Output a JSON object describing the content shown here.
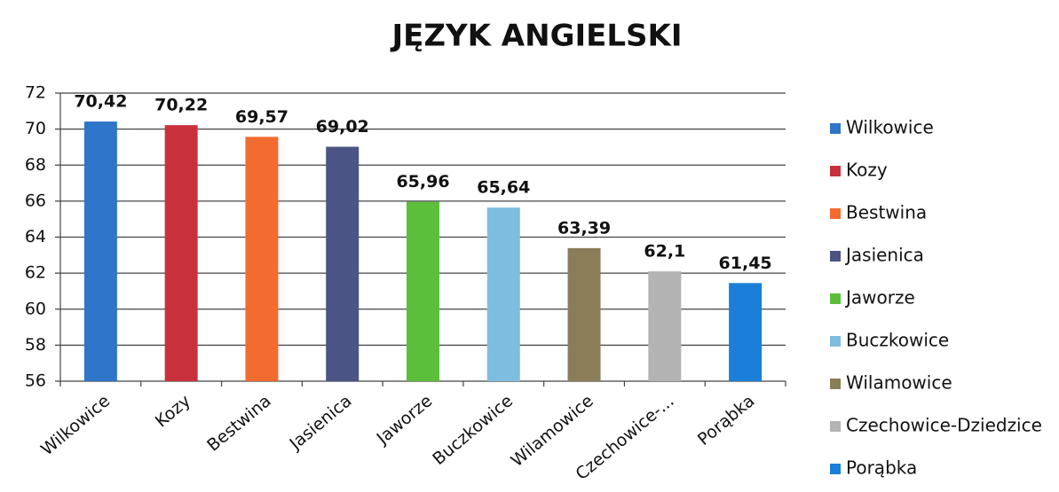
{
  "chart_data": {
    "type": "bar",
    "title": "JĘZYK ANGIELSKI",
    "categories": [
      "Wilkowice",
      "Kozy",
      "Bestwina",
      "Jasienica",
      "Jaworze",
      "Buczkowice",
      "Wilamowice",
      "Czechowice-...",
      "Porąbka"
    ],
    "values": [
      70.42,
      70.22,
      69.57,
      69.02,
      65.96,
      65.64,
      63.39,
      62.1,
      61.45
    ],
    "value_labels": [
      "70,42",
      "70,22",
      "69,57",
      "69,02",
      "65,96",
      "65,64",
      "63,39",
      "62,1",
      "61,45"
    ],
    "colors": [
      "#2f75c9",
      "#c8313b",
      "#f26b2f",
      "#4a5585",
      "#5cbf3c",
      "#7fbde0",
      "#8a7d58",
      "#b3b3b3",
      "#1a7fd9"
    ],
    "legend": [
      "Wilkowice",
      "Kozy",
      "Bestwina",
      "Jasienica",
      "Jaworze",
      "Buczkowice",
      "Wilamowice",
      "Czechowice-Dziedzice",
      "Porąbka"
    ],
    "ylim": [
      56,
      72
    ],
    "yticks": [
      56,
      58,
      60,
      62,
      64,
      66,
      68,
      70,
      72
    ],
    "grid": true
  }
}
